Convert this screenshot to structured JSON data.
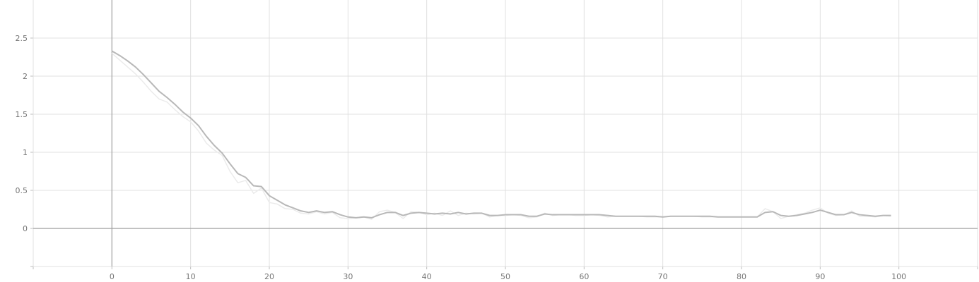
{
  "chart_data": {
    "type": "line",
    "title": "",
    "xlabel": "",
    "ylabel": "",
    "xlim": [
      -10,
      110
    ],
    "ylim": [
      -0.5,
      3
    ],
    "xticks": [
      0,
      10,
      20,
      30,
      40,
      50,
      60,
      70,
      80,
      90,
      100
    ],
    "xtick_labels": [
      "0",
      "10",
      "20",
      "30",
      "40",
      "50",
      "60",
      "70",
      "80",
      "90",
      "100"
    ],
    "yticks": [
      0,
      0.5,
      1,
      1.5,
      2,
      2.5
    ],
    "ytick_labels": [
      "0",
      "0.5",
      "1",
      "1.5",
      "2",
      "2.5"
    ],
    "grid": true,
    "series": [
      {
        "role": "raw",
        "color": "#ebebeb",
        "x": [
          0,
          1,
          2,
          3,
          4,
          5,
          6,
          7,
          8,
          9,
          10,
          11,
          12,
          13,
          14,
          15,
          16,
          17,
          18,
          19,
          20,
          21,
          22,
          23,
          24,
          25,
          26,
          27,
          28,
          29,
          30,
          31,
          32,
          33,
          34,
          35,
          36,
          37,
          38,
          39,
          40,
          41,
          42,
          43,
          44,
          45,
          46,
          47,
          48,
          49,
          50,
          51,
          52,
          53,
          54,
          55,
          56,
          57,
          58,
          59,
          60,
          61,
          62,
          63,
          64,
          65,
          66,
          67,
          68,
          69,
          70,
          71,
          72,
          73,
          74,
          75,
          76,
          77,
          78,
          79,
          80,
          81,
          82,
          83,
          84,
          85,
          86,
          87,
          88,
          89,
          90,
          91,
          92,
          93,
          94,
          95,
          96,
          97,
          98,
          99
        ],
        "values": [
          2.3,
          2.21,
          2.12,
          2.03,
          1.92,
          1.8,
          1.7,
          1.66,
          1.56,
          1.47,
          1.4,
          1.28,
          1.12,
          1.03,
          0.96,
          0.75,
          0.6,
          0.63,
          0.46,
          0.53,
          0.34,
          0.32,
          0.26,
          0.25,
          0.2,
          0.19,
          0.22,
          0.19,
          0.21,
          0.14,
          0.13,
          0.14,
          0.15,
          0.12,
          0.22,
          0.24,
          0.21,
          0.13,
          0.22,
          0.21,
          0.18,
          0.2,
          0.17,
          0.23,
          0.17,
          0.2,
          0.19,
          0.2,
          0.15,
          0.17,
          0.17,
          0.18,
          0.17,
          0.14,
          0.15,
          0.2,
          0.17,
          0.18,
          0.18,
          0.17,
          0.17,
          0.18,
          0.17,
          0.15,
          0.16,
          0.16,
          0.16,
          0.16,
          0.15,
          0.15,
          0.15,
          0.16,
          0.16,
          0.16,
          0.16,
          0.15,
          0.15,
          0.15,
          0.15,
          0.15,
          0.15,
          0.15,
          0.15,
          0.26,
          0.22,
          0.13,
          0.16,
          0.18,
          0.2,
          0.24,
          0.27,
          0.2,
          0.17,
          0.18,
          0.23,
          0.16,
          0.16,
          0.15,
          0.17,
          0.16
        ]
      },
      {
        "role": "smoothed",
        "color": "#b8b8b8",
        "x": [
          0,
          1,
          2,
          3,
          4,
          5,
          6,
          7,
          8,
          9,
          10,
          11,
          12,
          13,
          14,
          15,
          16,
          17,
          18,
          19,
          20,
          21,
          22,
          23,
          24,
          25,
          26,
          27,
          28,
          29,
          30,
          31,
          32,
          33,
          34,
          35,
          36,
          37,
          38,
          39,
          40,
          41,
          42,
          43,
          44,
          45,
          46,
          47,
          48,
          49,
          50,
          51,
          52,
          53,
          54,
          55,
          56,
          57,
          58,
          59,
          60,
          61,
          62,
          63,
          64,
          65,
          66,
          67,
          68,
          69,
          70,
          71,
          72,
          73,
          74,
          75,
          76,
          77,
          78,
          79,
          80,
          81,
          82,
          83,
          84,
          85,
          86,
          87,
          88,
          89,
          90,
          91,
          92,
          93,
          94,
          95,
          96,
          97,
          98,
          99
        ],
        "values": [
          2.33,
          2.27,
          2.2,
          2.12,
          2.02,
          1.91,
          1.8,
          1.72,
          1.63,
          1.53,
          1.45,
          1.35,
          1.21,
          1.09,
          0.99,
          0.85,
          0.72,
          0.67,
          0.56,
          0.55,
          0.43,
          0.37,
          0.31,
          0.27,
          0.23,
          0.21,
          0.23,
          0.21,
          0.22,
          0.18,
          0.15,
          0.14,
          0.15,
          0.14,
          0.18,
          0.21,
          0.21,
          0.17,
          0.2,
          0.21,
          0.2,
          0.19,
          0.2,
          0.19,
          0.21,
          0.19,
          0.2,
          0.2,
          0.17,
          0.17,
          0.18,
          0.18,
          0.18,
          0.16,
          0.16,
          0.19,
          0.18,
          0.18,
          0.18,
          0.18,
          0.18,
          0.18,
          0.18,
          0.17,
          0.16,
          0.16,
          0.16,
          0.16,
          0.16,
          0.16,
          0.15,
          0.16,
          0.16,
          0.16,
          0.16,
          0.16,
          0.16,
          0.15,
          0.15,
          0.15,
          0.15,
          0.15,
          0.15,
          0.21,
          0.22,
          0.17,
          0.16,
          0.17,
          0.19,
          0.21,
          0.24,
          0.21,
          0.18,
          0.18,
          0.21,
          0.18,
          0.17,
          0.16,
          0.17,
          0.17
        ]
      }
    ]
  }
}
